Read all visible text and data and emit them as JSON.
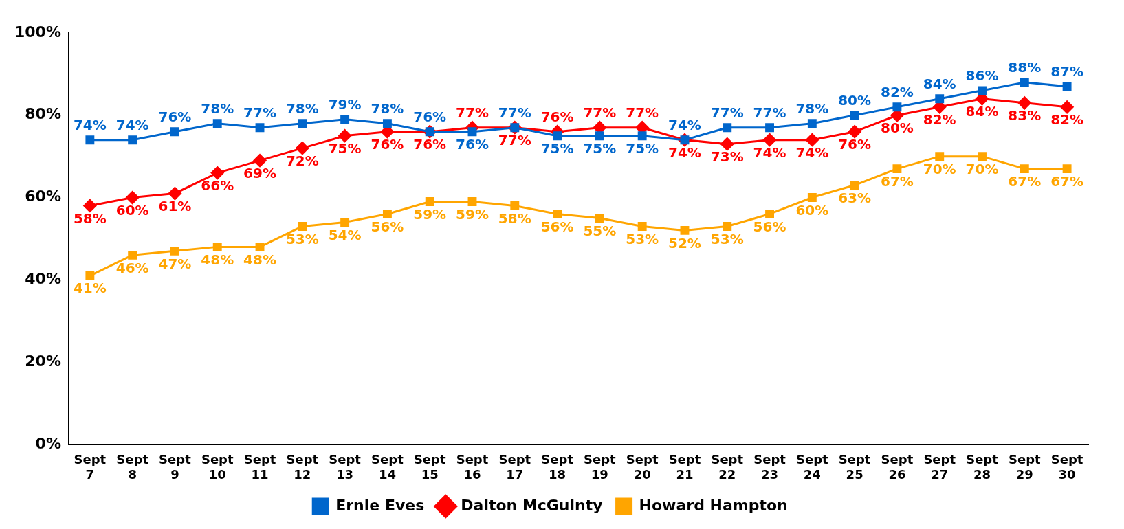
{
  "chart_data": {
    "type": "line",
    "categories": [
      "Sept 7",
      "Sept 8",
      "Sept 9",
      "Sept 10",
      "Sept 11",
      "Sept 12",
      "Sept 13",
      "Sept 14",
      "Sept 15",
      "Sept 16",
      "Sept 17",
      "Sept 18",
      "Sept 19",
      "Sept 20",
      "Sept 21",
      "Sept 22",
      "Sept 23",
      "Sept 24",
      "Sept 25",
      "Sept 26",
      "Sept 27",
      "Sept 28",
      "Sept 29",
      "Sept 30"
    ],
    "series": [
      {
        "name": "Ernie Eves",
        "color": "#0066cc",
        "marker": "square",
        "values": [
          74,
          74,
          76,
          78,
          77,
          78,
          79,
          78,
          76,
          76,
          77,
          75,
          75,
          75,
          74,
          77,
          77,
          78,
          80,
          82,
          84,
          86,
          88,
          87
        ],
        "value_labels": [
          "74%",
          "74%",
          "76%",
          "78%",
          "77%",
          "78%",
          "79%",
          "78%",
          "76%",
          "76%",
          "77%",
          "75%",
          "75%",
          "75%",
          "74%",
          "77%",
          "77%",
          "78%",
          "80%",
          "82%",
          "84%",
          "86%",
          "88%",
          "87%"
        ]
      },
      {
        "name": "Dalton McGuinty",
        "color": "#ff0000",
        "marker": "diamond",
        "values": [
          58,
          60,
          61,
          66,
          69,
          72,
          75,
          76,
          76,
          77,
          77,
          76,
          77,
          77,
          74,
          73,
          74,
          74,
          76,
          80,
          82,
          84,
          83,
          82
        ],
        "value_labels": [
          "58%",
          "60%",
          "61%",
          "66%",
          "69%",
          "72%",
          "75%",
          "76%",
          "76%",
          "77%",
          "77%",
          "76%",
          "77%",
          "77%",
          "74%",
          "73%",
          "74%",
          "74%",
          "76%",
          "80%",
          "82%",
          "84%",
          "83%",
          "82%"
        ]
      },
      {
        "name": "Howard Hampton",
        "color": "#ffa500",
        "marker": "square",
        "values": [
          41,
          46,
          47,
          48,
          48,
          53,
          54,
          56,
          59,
          59,
          58,
          56,
          55,
          53,
          52,
          53,
          56,
          60,
          63,
          67,
          70,
          70,
          67,
          67
        ],
        "value_labels": [
          "41%",
          "46%",
          "47%",
          "48%",
          "48%",
          "53%",
          "54%",
          "56%",
          "59%",
          "59%",
          "58%",
          "56%",
          "55%",
          "53%",
          "52%",
          "53%",
          "56%",
          "60%",
          "63%",
          "67%",
          "70%",
          "70%",
          "67%",
          "67%"
        ]
      }
    ],
    "ylim": [
      0,
      100
    ],
    "yticks": [
      {
        "value": 0,
        "label": "0%"
      },
      {
        "value": 20,
        "label": "20%"
      },
      {
        "value": 40,
        "label": "40%"
      },
      {
        "value": 60,
        "label": "60%"
      },
      {
        "value": 80,
        "label": "80%"
      },
      {
        "value": 100,
        "label": "100%"
      }
    ],
    "grid": false,
    "legend": "bottom",
    "line_style": "solid"
  }
}
